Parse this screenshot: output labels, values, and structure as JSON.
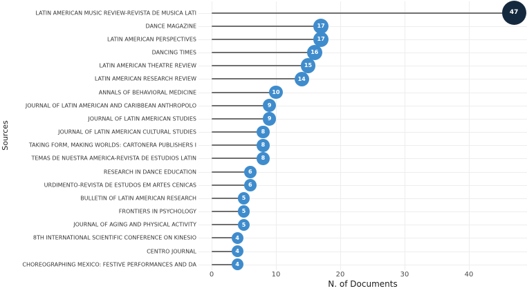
{
  "chart_data": {
    "type": "bar",
    "variant": "horizontal-lollipop",
    "title": "",
    "xlabel": "N. of Documents",
    "ylabel": "Sources",
    "categories": [
      "LATIN AMERICAN MUSIC REVIEW-REVISTA DE MUSICA LATI",
      "DANCE MAGAZINE",
      "LATIN AMERICAN PERSPECTIVES",
      "DANCING TIMES",
      "LATIN AMERICAN THEATRE REVIEW",
      "LATIN AMERICAN RESEARCH REVIEW",
      "ANNALS OF BEHAVIORAL MEDICINE",
      "JOURNAL OF LATIN AMERICAN AND CARIBBEAN ANTHROPOLO",
      "JOURNAL OF LATIN AMERICAN STUDIES",
      "JOURNAL OF LATIN AMERICAN CULTURAL STUDIES",
      "TAKING FORM, MAKING WORLDS: CARTONERA PUBLISHERS I",
      "TEMAS DE NUESTRA AMERICA-REVISTA DE ESTUDIOS LATIN",
      "RESEARCH IN DANCE EDUCATION",
      "URDIMENTO-REVISTA DE ESTUDOS EM ARTES CENICAS",
      "BULLETIN OF LATIN AMERICAN RESEARCH",
      "FRONTIERS IN PSYCHOLOGY",
      "JOURNAL OF AGING AND PHYSICAL ACTIVITY",
      "8TH INTERNATIONAL SCIENTIFIC CONFERENCE ON KINESIO",
      "CENTRO JOURNAL",
      "CHOREOGRAPHING MEXICO: FESTIVE PERFORMANCES AND DA"
    ],
    "values": [
      47,
      17,
      17,
      16,
      15,
      14,
      10,
      9,
      9,
      8,
      8,
      8,
      6,
      6,
      5,
      5,
      5,
      4,
      4,
      4
    ],
    "xticks": [
      0,
      10,
      20,
      30,
      40
    ],
    "xlim": [
      -2,
      49
    ],
    "grid": true,
    "legend": "none",
    "highlight": {
      "index": 0,
      "value": 47
    },
    "colors": {
      "dot": "#3f8ccd",
      "dot_highlight": "#15293e",
      "dot_text": "#ffffff",
      "stem": "#6e6e6e",
      "gridline": "#ededed",
      "category_label": "#363636",
      "tick_label": "#4a4a4a",
      "axis_title": "#1c1c1c",
      "background": "#ffffff"
    }
  }
}
